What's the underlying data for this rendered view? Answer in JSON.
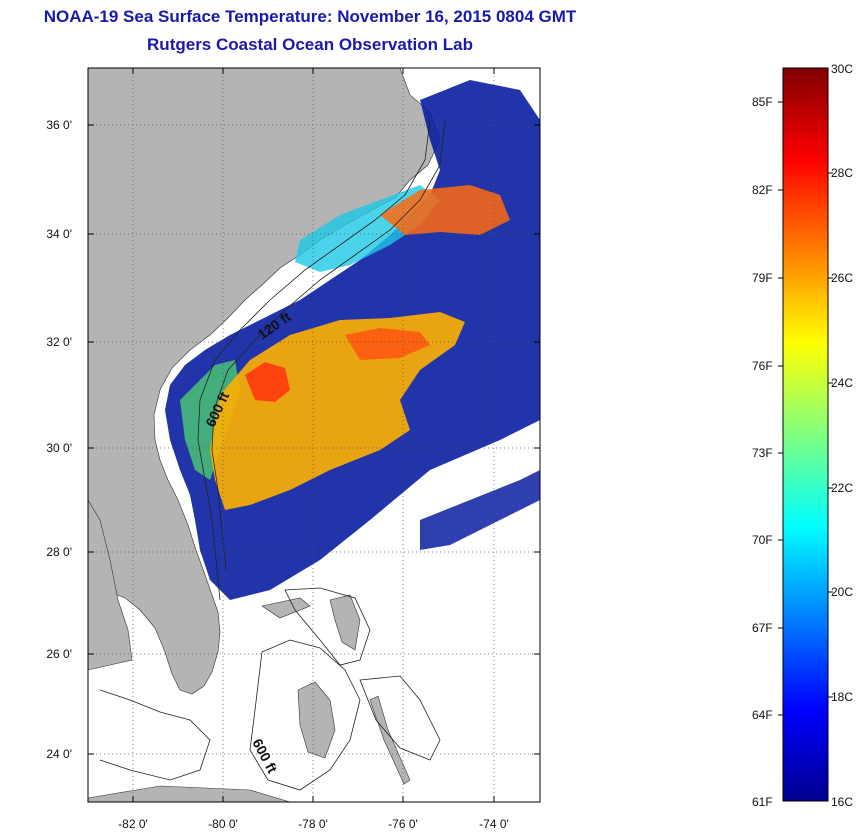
{
  "header": {
    "title": "NOAA-19 Sea Surface Temperature:  November 16, 2015 0804 GMT",
    "subtitle": "Rutgers Coastal Ocean Observation Lab"
  },
  "map": {
    "region": "U.S. Southeast coast (Florida to North Carolina) and Bahamas",
    "lat_labels": [
      "36 0'",
      "34 0'",
      "32 0'",
      "30 0'",
      "28 0'",
      "26 0'",
      "24 0'"
    ],
    "lon_labels": [
      "-82 0'",
      "-80 0'",
      "-78 0'",
      "-76 0'",
      "-74 0'"
    ],
    "lat_range": [
      23.0,
      37.0
    ],
    "lon_range": [
      -83.0,
      -73.0
    ],
    "contour_labels": [
      "120 ft",
      "600 ft",
      "600 ft"
    ],
    "grid": "dotted",
    "colors": {
      "land": "#b4b4b4",
      "no_data": "#ffffff",
      "title": "#1a1aa8"
    }
  },
  "colorbar": {
    "celsius_labels": [
      "30C",
      "28C",
      "26C",
      "24C",
      "22C",
      "20C",
      "18C",
      "16C"
    ],
    "fahrenheit_labels": [
      "85F",
      "82F",
      "79F",
      "76F",
      "73F",
      "70F",
      "67F",
      "64F",
      "61F"
    ],
    "range_c": [
      16,
      30
    ],
    "colormap": "jet"
  }
}
